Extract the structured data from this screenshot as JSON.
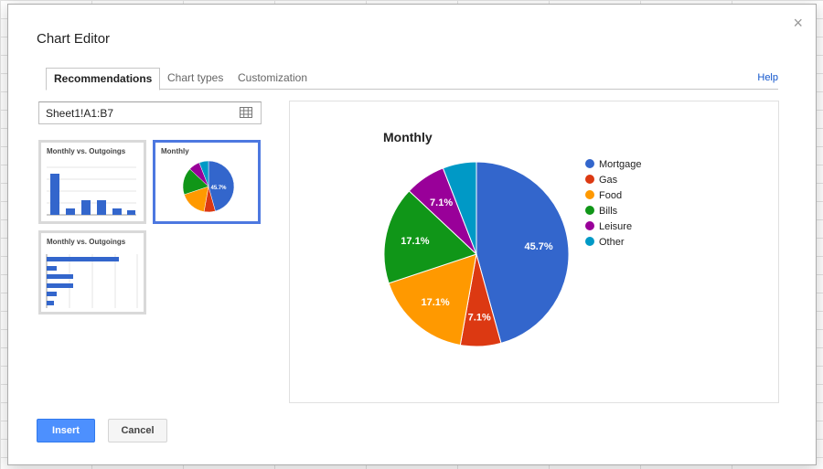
{
  "dialog": {
    "title": "Chart Editor",
    "close_glyph": "×",
    "tabs": [
      {
        "label": "Recommendations",
        "active": true
      },
      {
        "label": "Chart types",
        "active": false
      },
      {
        "label": "Customization",
        "active": false
      }
    ],
    "help_label": "Help",
    "range": {
      "value": "Sheet1!A1:B7"
    },
    "thumbnails": [
      {
        "title": "Monthly vs. Outgoings",
        "kind": "column",
        "selected": false
      },
      {
        "title": "Monthly",
        "kind": "pie",
        "selected": true,
        "label": "45.7%"
      },
      {
        "title": "Monthly vs. Outgoings",
        "kind": "horizontal-bar",
        "selected": false
      }
    ],
    "buttons": {
      "insert": "Insert",
      "cancel": "Cancel"
    }
  },
  "colors": {
    "accent": "#4d78e0",
    "link": "#1155cc",
    "primary_button": "#4d90fe"
  },
  "chart_data": {
    "type": "pie",
    "title": "Monthly",
    "legend_position": "right",
    "series": [
      {
        "name": "Mortgage",
        "value": 45.7,
        "label": "45.7%",
        "color": "#3366cc"
      },
      {
        "name": "Gas",
        "value": 7.1,
        "label": "7.1%",
        "color": "#dc3912"
      },
      {
        "name": "Food",
        "value": 17.1,
        "label": "17.1%",
        "color": "#ff9900"
      },
      {
        "name": "Bills",
        "value": 17.1,
        "label": "17.1%",
        "color": "#109618"
      },
      {
        "name": "Leisure",
        "value": 7.1,
        "label": "7.1%",
        "color": "#990099"
      },
      {
        "name": "Other",
        "value": 5.9,
        "label": "",
        "color": "#0099c6"
      }
    ]
  }
}
